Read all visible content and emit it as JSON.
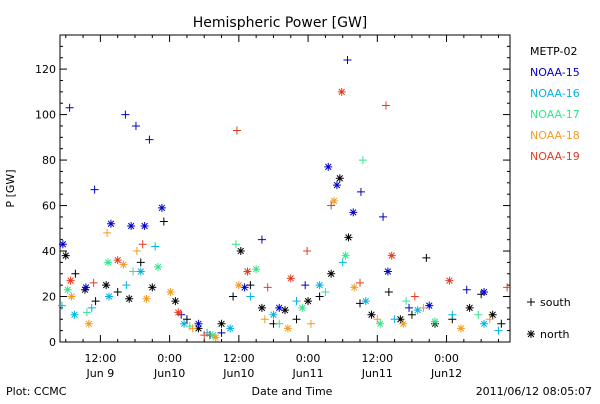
{
  "chart_data": {
    "type": "scatter",
    "title": "Hemispheric Power [GW]",
    "ylabel": "P [GW]",
    "xlabel": "Date and Time",
    "ylim": [
      0,
      135
    ],
    "xlim": [
      "2011-06-09 05:00",
      "2011-06-12 11:00"
    ],
    "grid": false,
    "legend_position": "right",
    "x_ticks": [
      {
        "time": "2011-06-09 12:00",
        "time_label": "12:00",
        "date_label": "Jun 9"
      },
      {
        "time": "2011-06-10 00:00",
        "time_label": "0:00",
        "date_label": "Jun10"
      },
      {
        "time": "2011-06-10 12:00",
        "time_label": "12:00",
        "date_label": "Jun10"
      },
      {
        "time": "2011-06-11 00:00",
        "time_label": "0:00",
        "date_label": "Jun11"
      },
      {
        "time": "2011-06-11 12:00",
        "time_label": "12:00",
        "date_label": "Jun11"
      },
      {
        "time": "2011-06-12 00:00",
        "time_label": "0:00",
        "date_label": "Jun12"
      }
    ],
    "y_ticks": [
      0,
      20,
      40,
      60,
      80,
      100,
      120
    ],
    "marker_legend": [
      {
        "symbol": "+",
        "label": "south"
      },
      {
        "symbol": "*",
        "label": "north"
      }
    ],
    "series": [
      {
        "name": "METP-02",
        "color": "#000000",
        "points": [
          {
            "t": "2011-06-09 06:00",
            "p": 38,
            "m": "*"
          },
          {
            "t": "2011-06-09 07:40",
            "p": 30,
            "m": "+"
          },
          {
            "t": "2011-06-09 09:20",
            "p": 23,
            "m": "*"
          },
          {
            "t": "2011-06-09 11:10",
            "p": 18,
            "m": "+"
          },
          {
            "t": "2011-06-09 13:00",
            "p": 25,
            "m": "*"
          },
          {
            "t": "2011-06-09 15:00",
            "p": 22,
            "m": "+"
          },
          {
            "t": "2011-06-09 17:00",
            "p": 19,
            "m": "*"
          },
          {
            "t": "2011-06-09 19:00",
            "p": 35,
            "m": "+"
          },
          {
            "t": "2011-06-09 21:00",
            "p": 24,
            "m": "*"
          },
          {
            "t": "2011-06-09 23:00",
            "p": 53,
            "m": "+"
          },
          {
            "t": "2011-06-10 01:00",
            "p": 18,
            "m": "*"
          },
          {
            "t": "2011-06-10 03:00",
            "p": 10,
            "m": "+"
          },
          {
            "t": "2011-06-10 05:00",
            "p": 6,
            "m": "*"
          },
          {
            "t": "2011-06-10 07:00",
            "p": 3,
            "m": "+"
          },
          {
            "t": "2011-06-10 09:00",
            "p": 8,
            "m": "*"
          },
          {
            "t": "2011-06-10 11:00",
            "p": 20,
            "m": "+"
          },
          {
            "t": "2011-06-10 12:20",
            "p": 40,
            "m": "*"
          },
          {
            "t": "2011-06-10 14:00",
            "p": 25,
            "m": "+"
          },
          {
            "t": "2011-06-10 16:00",
            "p": 15,
            "m": "*"
          },
          {
            "t": "2011-06-10 18:00",
            "p": 8,
            "m": "+"
          },
          {
            "t": "2011-06-10 20:00",
            "p": 14,
            "m": "*"
          },
          {
            "t": "2011-06-10 22:00",
            "p": 10,
            "m": "+"
          },
          {
            "t": "2011-06-11 00:00",
            "p": 18,
            "m": "*"
          },
          {
            "t": "2011-06-11 02:00",
            "p": 20,
            "m": "+"
          },
          {
            "t": "2011-06-11 04:00",
            "p": 30,
            "m": "*"
          },
          {
            "t": "2011-06-11 05:30",
            "p": 72,
            "m": "*"
          },
          {
            "t": "2011-06-11 07:00",
            "p": 46,
            "m": "*"
          },
          {
            "t": "2011-06-11 09:00",
            "p": 17,
            "m": "+"
          },
          {
            "t": "2011-06-11 11:00",
            "p": 12,
            "m": "*"
          },
          {
            "t": "2011-06-11 14:00",
            "p": 22,
            "m": "+"
          },
          {
            "t": "2011-06-11 16:00",
            "p": 10,
            "m": "*"
          },
          {
            "t": "2011-06-11 18:00",
            "p": 12,
            "m": "+"
          },
          {
            "t": "2011-06-11 20:30",
            "p": 37,
            "m": "+"
          },
          {
            "t": "2011-06-11 22:00",
            "p": 8,
            "m": "*"
          },
          {
            "t": "2011-06-12 01:00",
            "p": 10,
            "m": "+"
          },
          {
            "t": "2011-06-12 04:00",
            "p": 15,
            "m": "*"
          },
          {
            "t": "2011-06-12 06:00",
            "p": 21,
            "m": "+"
          },
          {
            "t": "2011-06-12 08:00",
            "p": 12,
            "m": "*"
          },
          {
            "t": "2011-06-12 09:30",
            "p": 8,
            "m": "+"
          }
        ]
      },
      {
        "name": "NOAA-15",
        "color": "#0000cc",
        "points": [
          {
            "t": "2011-06-09 05:30",
            "p": 43,
            "m": "*"
          },
          {
            "t": "2011-06-09 06:40",
            "p": 103,
            "m": "+"
          },
          {
            "t": "2011-06-09 09:30",
            "p": 24,
            "m": "*"
          },
          {
            "t": "2011-06-09 11:00",
            "p": 67,
            "m": "+"
          },
          {
            "t": "2011-06-09 13:50",
            "p": 52,
            "m": "*"
          },
          {
            "t": "2011-06-09 16:20",
            "p": 100,
            "m": "+"
          },
          {
            "t": "2011-06-09 17:20",
            "p": 51,
            "m": "*"
          },
          {
            "t": "2011-06-09 18:10",
            "p": 95,
            "m": "+"
          },
          {
            "t": "2011-06-09 19:40",
            "p": 51,
            "m": "*"
          },
          {
            "t": "2011-06-09 20:30",
            "p": 89,
            "m": "+"
          },
          {
            "t": "2011-06-09 22:40",
            "p": 59,
            "m": "*"
          },
          {
            "t": "2011-06-10 02:00",
            "p": 12,
            "m": "+"
          },
          {
            "t": "2011-06-10 05:00",
            "p": 8,
            "m": "*"
          },
          {
            "t": "2011-06-10 09:00",
            "p": 4,
            "m": "+"
          },
          {
            "t": "2011-06-10 13:00",
            "p": 24,
            "m": "*"
          },
          {
            "t": "2011-06-10 16:00",
            "p": 45,
            "m": "+"
          },
          {
            "t": "2011-06-10 19:00",
            "p": 15,
            "m": "*"
          },
          {
            "t": "2011-06-10 23:30",
            "p": 25,
            "m": "+"
          },
          {
            "t": "2011-06-11 03:30",
            "p": 77,
            "m": "*"
          },
          {
            "t": "2011-06-11 05:00",
            "p": 69,
            "m": "*"
          },
          {
            "t": "2011-06-11 06:50",
            "p": 124,
            "m": "+"
          },
          {
            "t": "2011-06-11 07:50",
            "p": 57,
            "m": "*"
          },
          {
            "t": "2011-06-11 09:10",
            "p": 66,
            "m": "+"
          },
          {
            "t": "2011-06-11 13:00",
            "p": 55,
            "m": "+"
          },
          {
            "t": "2011-06-11 13:50",
            "p": 31,
            "m": "*"
          },
          {
            "t": "2011-06-11 17:30",
            "p": 15,
            "m": "+"
          },
          {
            "t": "2011-06-11 21:00",
            "p": 16,
            "m": "*"
          },
          {
            "t": "2011-06-12 03:30",
            "p": 23,
            "m": "+"
          },
          {
            "t": "2011-06-12 06:30",
            "p": 22,
            "m": "*"
          }
        ]
      },
      {
        "name": "NOAA-16",
        "color": "#00b4e6",
        "points": [
          {
            "t": "2011-06-09 05:20",
            "p": 16,
            "m": "+"
          },
          {
            "t": "2011-06-09 07:30",
            "p": 12,
            "m": "*"
          },
          {
            "t": "2011-06-09 10:30",
            "p": 15,
            "m": "+"
          },
          {
            "t": "2011-06-09 13:30",
            "p": 20,
            "m": "*"
          },
          {
            "t": "2011-06-09 16:30",
            "p": 25,
            "m": "+"
          },
          {
            "t": "2011-06-09 19:00",
            "p": 31,
            "m": "*"
          },
          {
            "t": "2011-06-09 21:30",
            "p": 42,
            "m": "+"
          },
          {
            "t": "2011-06-10 02:30",
            "p": 8,
            "m": "*"
          },
          {
            "t": "2011-06-10 06:30",
            "p": 4,
            "m": "+"
          },
          {
            "t": "2011-06-10 10:30",
            "p": 6,
            "m": "*"
          },
          {
            "t": "2011-06-10 14:00",
            "p": 20,
            "m": "+"
          },
          {
            "t": "2011-06-10 18:00",
            "p": 12,
            "m": "*"
          },
          {
            "t": "2011-06-10 22:00",
            "p": 18,
            "m": "+"
          },
          {
            "t": "2011-06-11 02:00",
            "p": 25,
            "m": "*"
          },
          {
            "t": "2011-06-11 06:00",
            "p": 35,
            "m": "+"
          },
          {
            "t": "2011-06-11 10:00",
            "p": 18,
            "m": "*"
          },
          {
            "t": "2011-06-11 15:00",
            "p": 10,
            "m": "+"
          },
          {
            "t": "2011-06-11 19:00",
            "p": 14,
            "m": "*"
          },
          {
            "t": "2011-06-12 01:00",
            "p": 12,
            "m": "+"
          },
          {
            "t": "2011-06-12 06:30",
            "p": 8,
            "m": "*"
          },
          {
            "t": "2011-06-12 09:00",
            "p": 5,
            "m": "+"
          }
        ]
      },
      {
        "name": "NOAA-17",
        "color": "#33e68c",
        "points": [
          {
            "t": "2011-06-09 06:20",
            "p": 23,
            "m": "*"
          },
          {
            "t": "2011-06-09 09:40",
            "p": 13,
            "m": "+"
          },
          {
            "t": "2011-06-09 13:20",
            "p": 35,
            "m": "*"
          },
          {
            "t": "2011-06-09 17:40",
            "p": 31,
            "m": "+"
          },
          {
            "t": "2011-06-09 22:00",
            "p": 33,
            "m": "*"
          },
          {
            "t": "2011-06-10 03:30",
            "p": 7,
            "m": "+"
          },
          {
            "t": "2011-06-10 07:30",
            "p": 3,
            "m": "*"
          },
          {
            "t": "2011-06-10 11:30",
            "p": 43,
            "m": "+"
          },
          {
            "t": "2011-06-10 15:00",
            "p": 32,
            "m": "*"
          },
          {
            "t": "2011-06-10 19:00",
            "p": 8,
            "m": "+"
          },
          {
            "t": "2011-06-10 23:00",
            "p": 15,
            "m": "*"
          },
          {
            "t": "2011-06-11 03:00",
            "p": 22,
            "m": "+"
          },
          {
            "t": "2011-06-11 06:30",
            "p": 38,
            "m": "*"
          },
          {
            "t": "2011-06-11 09:30",
            "p": 80,
            "m": "+"
          },
          {
            "t": "2011-06-11 12:30",
            "p": 8,
            "m": "*"
          },
          {
            "t": "2011-06-11 17:00",
            "p": 18,
            "m": "+"
          },
          {
            "t": "2011-06-11 22:00",
            "p": 9,
            "m": "*"
          },
          {
            "t": "2011-06-12 05:30",
            "p": 12,
            "m": "+"
          }
        ]
      },
      {
        "name": "NOAA-18",
        "color": "#f59b1e",
        "points": [
          {
            "t": "2011-06-09 07:00",
            "p": 20,
            "m": "*"
          },
          {
            "t": "2011-06-09 10:00",
            "p": 8,
            "m": "*"
          },
          {
            "t": "2011-06-09 13:10",
            "p": 48,
            "m": "+"
          },
          {
            "t": "2011-06-09 16:00",
            "p": 34,
            "m": "*"
          },
          {
            "t": "2011-06-09 18:20",
            "p": 40,
            "m": "+"
          },
          {
            "t": "2011-06-09 20:00",
            "p": 19,
            "m": "*"
          },
          {
            "t": "2011-06-10 00:10",
            "p": 22,
            "m": "*"
          },
          {
            "t": "2011-06-10 04:00",
            "p": 6,
            "m": "+"
          },
          {
            "t": "2011-06-10 08:00",
            "p": 2,
            "m": "*"
          },
          {
            "t": "2011-06-10 12:00",
            "p": 25,
            "m": "*"
          },
          {
            "t": "2011-06-10 16:30",
            "p": 10,
            "m": "+"
          },
          {
            "t": "2011-06-10 20:30",
            "p": 6,
            "m": "*"
          },
          {
            "t": "2011-06-11 00:30",
            "p": 8,
            "m": "+"
          },
          {
            "t": "2011-06-11 04:30",
            "p": 62,
            "m": "*"
          },
          {
            "t": "2011-06-11 08:00",
            "p": 24,
            "m": "*"
          },
          {
            "t": "2011-06-11 12:00",
            "p": 10,
            "m": "+"
          },
          {
            "t": "2011-06-11 16:30",
            "p": 8,
            "m": "*"
          },
          {
            "t": "2011-06-11 20:00",
            "p": 15,
            "m": "+"
          },
          {
            "t": "2011-06-12 02:30",
            "p": 6,
            "m": "*"
          },
          {
            "t": "2011-06-12 07:30",
            "p": 10,
            "m": "+"
          }
        ]
      },
      {
        "name": "NOAA-19",
        "color": "#e63c1e",
        "points": [
          {
            "t": "2011-06-09 06:50",
            "p": 27,
            "m": "*"
          },
          {
            "t": "2011-06-09 10:50",
            "p": 26,
            "m": "+"
          },
          {
            "t": "2011-06-09 15:00",
            "p": 36,
            "m": "*"
          },
          {
            "t": "2011-06-09 19:20",
            "p": 43,
            "m": "+"
          },
          {
            "t": "2011-06-10 01:30",
            "p": 13,
            "m": "*"
          },
          {
            "t": "2011-06-10 06:00",
            "p": 3,
            "m": "+"
          },
          {
            "t": "2011-06-10 11:40",
            "p": 93,
            "m": "+"
          },
          {
            "t": "2011-06-10 13:30",
            "p": 31,
            "m": "*"
          },
          {
            "t": "2011-06-10 17:00",
            "p": 24,
            "m": "+"
          },
          {
            "t": "2011-06-10 21:00",
            "p": 28,
            "m": "*"
          },
          {
            "t": "2011-06-10 23:50",
            "p": 40,
            "m": "+"
          },
          {
            "t": "2011-06-11 04:00",
            "p": 60,
            "m": "+"
          },
          {
            "t": "2011-06-11 05:50",
            "p": 110,
            "m": "*"
          },
          {
            "t": "2011-06-11 09:00",
            "p": 26,
            "m": "+"
          },
          {
            "t": "2011-06-11 13:30",
            "p": 104,
            "m": "+"
          },
          {
            "t": "2011-06-11 14:30",
            "p": 38,
            "m": "*"
          },
          {
            "t": "2011-06-11 18:30",
            "p": 20,
            "m": "+"
          },
          {
            "t": "2011-06-12 00:30",
            "p": 27,
            "m": "*"
          },
          {
            "t": "2011-06-12 10:30",
            "p": 24,
            "m": "+"
          }
        ]
      }
    ]
  },
  "footer": {
    "source_label": "Plot: CCMC",
    "timestamp": "2011/06/12 08:05:07"
  }
}
